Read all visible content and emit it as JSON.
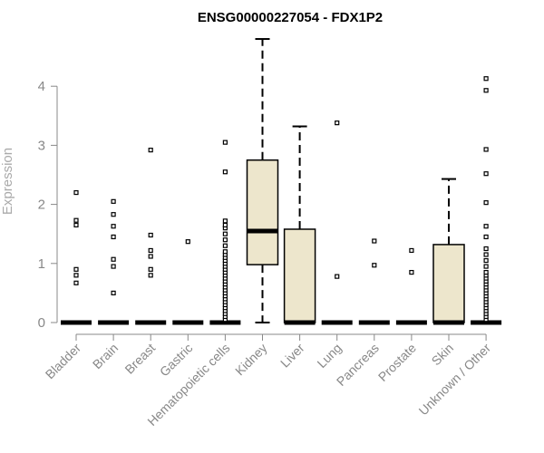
{
  "chart_data": {
    "type": "boxplot",
    "title": "ENSG00000227054 - FDX1P2",
    "xlabel": "",
    "ylabel": "Expression",
    "ylim": [
      0,
      4.8
    ],
    "yticks": [
      0,
      1,
      2,
      3,
      4
    ],
    "box_color": "#ede6cc",
    "categories": [
      "Bladder",
      "Brain",
      "Breast",
      "Gastric",
      "Hematopoietic cells",
      "Kidney",
      "Liver",
      "Lung",
      "Pancreas",
      "Prostate",
      "Skin",
      "Unknown / Other"
    ],
    "boxes": [
      {
        "name": "Bladder",
        "q1": 0,
        "median": 0,
        "q3": 0,
        "whisker_low": 0,
        "whisker_high": 0,
        "outliers": [
          0.67,
          0.8,
          0.9,
          1.65,
          1.73,
          2.2
        ]
      },
      {
        "name": "Brain",
        "q1": 0,
        "median": 0,
        "q3": 0,
        "whisker_low": 0,
        "whisker_high": 0,
        "outliers": [
          0.5,
          0.95,
          1.07,
          1.45,
          1.63,
          1.83,
          2.05
        ]
      },
      {
        "name": "Breast",
        "q1": 0,
        "median": 0,
        "q3": 0,
        "whisker_low": 0,
        "whisker_high": 0,
        "outliers": [
          0.8,
          0.9,
          1.12,
          1.22,
          1.48,
          2.92
        ]
      },
      {
        "name": "Gastric",
        "q1": 0,
        "median": 0,
        "q3": 0,
        "whisker_low": 0,
        "whisker_high": 0,
        "outliers": [
          1.37
        ]
      },
      {
        "name": "Hematopoietic cells",
        "q1": 0,
        "median": 0,
        "q3": 0,
        "whisker_low": 0,
        "whisker_high": 0,
        "outliers": [
          0.05,
          0.1,
          0.15,
          0.2,
          0.25,
          0.3,
          0.35,
          0.4,
          0.45,
          0.5,
          0.55,
          0.6,
          0.65,
          0.7,
          0.75,
          0.8,
          0.85,
          0.9,
          0.95,
          1.0,
          1.05,
          1.1,
          1.15,
          1.2,
          1.3,
          1.4,
          1.5,
          1.6,
          1.65,
          1.72,
          2.55,
          3.05
        ]
      },
      {
        "name": "Kidney",
        "q1": 0.98,
        "median": 1.55,
        "q3": 2.75,
        "whisker_low": 0,
        "whisker_high": 4.8,
        "outliers": []
      },
      {
        "name": "Liver",
        "q1": 0,
        "median": 0,
        "q3": 1.58,
        "whisker_low": 0,
        "whisker_high": 3.32,
        "outliers": []
      },
      {
        "name": "Lung",
        "q1": 0,
        "median": 0,
        "q3": 0,
        "whisker_low": 0,
        "whisker_high": 0,
        "outliers": [
          0.78,
          3.38
        ]
      },
      {
        "name": "Pancreas",
        "q1": 0,
        "median": 0,
        "q3": 0,
        "whisker_low": 0,
        "whisker_high": 0,
        "outliers": [
          0.97,
          1.38
        ]
      },
      {
        "name": "Prostate",
        "q1": 0,
        "median": 0,
        "q3": 0,
        "whisker_low": 0,
        "whisker_high": 0,
        "outliers": [
          0.85,
          1.22
        ]
      },
      {
        "name": "Skin",
        "q1": 0,
        "median": 0,
        "q3": 1.32,
        "whisker_low": 0,
        "whisker_high": 2.43,
        "outliers": []
      },
      {
        "name": "Unknown / Other",
        "q1": 0,
        "median": 0,
        "q3": 0,
        "whisker_low": 0,
        "whisker_high": 0,
        "outliers": [
          0.05,
          0.1,
          0.15,
          0.2,
          0.25,
          0.3,
          0.35,
          0.4,
          0.45,
          0.5,
          0.55,
          0.6,
          0.65,
          0.7,
          0.75,
          0.8,
          0.85,
          0.95,
          1.05,
          1.15,
          1.25,
          1.45,
          1.63,
          2.03,
          2.52,
          2.93,
          3.93,
          4.13
        ]
      }
    ]
  }
}
